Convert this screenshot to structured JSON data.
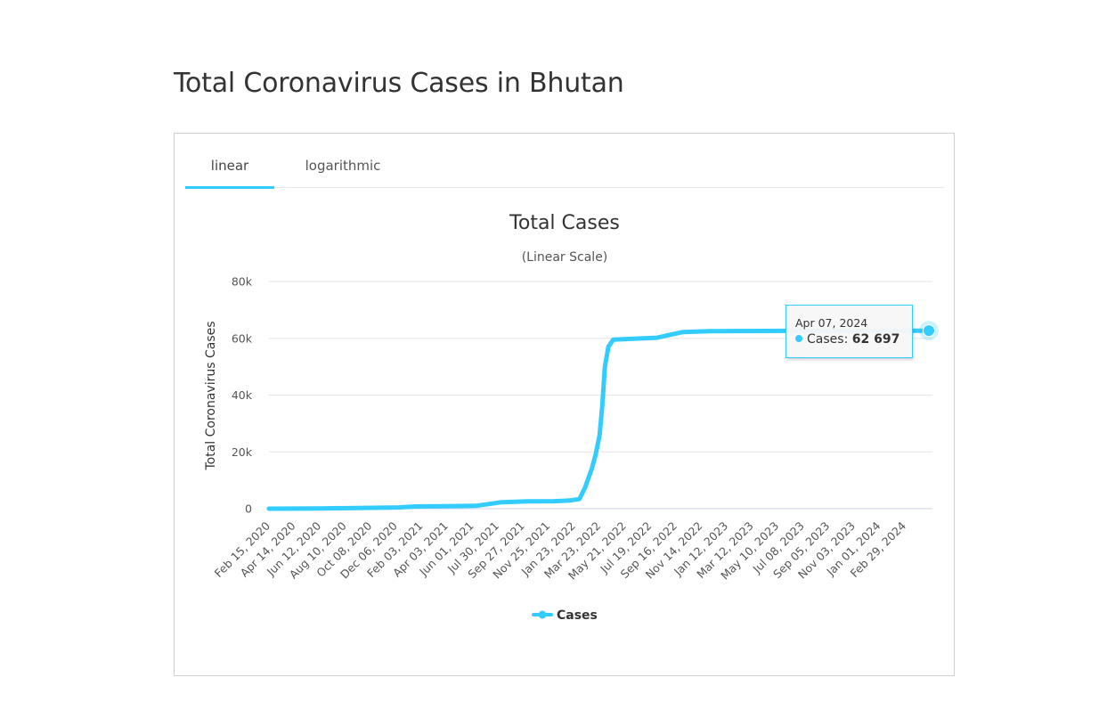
{
  "page": {
    "title": "Total Coronavirus Cases in Bhutan"
  },
  "tabs": [
    {
      "label": "linear",
      "active": true
    },
    {
      "label": "logarithmic",
      "active": false
    }
  ],
  "tooltip": {
    "date": "Apr 07, 2024",
    "series": "Cases",
    "value": "62 697"
  },
  "colors": {
    "accent": "#33ccff",
    "grid": "#e6e6e6"
  },
  "chart_data": {
    "type": "line",
    "title": "Total Cases",
    "subtitle": "(Linear Scale)",
    "ylabel": "Total Coronavirus Cases",
    "xlabel": "",
    "ylim": [
      0,
      80000
    ],
    "y_ticks": [
      {
        "value": 0,
        "label": "0"
      },
      {
        "value": 20000,
        "label": "20k"
      },
      {
        "value": 40000,
        "label": "40k"
      },
      {
        "value": 60000,
        "label": "60k"
      },
      {
        "value": 80000,
        "label": "80k"
      }
    ],
    "x_tick_labels": [
      "Feb 15, 2020",
      "Apr 14, 2020",
      "Jun 12, 2020",
      "Aug 10, 2020",
      "Oct 08, 2020",
      "Dec 06, 2020",
      "Feb 03, 2021",
      "Apr 03, 2021",
      "Jun 01, 2021",
      "Jul 30, 2021",
      "Sep 27, 2021",
      "Nov 25, 2021",
      "Jan 23, 2022",
      "Mar 23, 2022",
      "May 21, 2022",
      "Jul 19, 2022",
      "Sep 16, 2022",
      "Nov 14, 2022",
      "Jan 12, 2023",
      "Mar 12, 2023",
      "May 10, 2023",
      "Jul 08, 2023",
      "Sep 05, 2023",
      "Nov 03, 2023",
      "Jan 01, 2024",
      "Feb 29, 2024"
    ],
    "x_range": [
      "2020-02-15",
      "2024-04-07"
    ],
    "grid": true,
    "legend": "bottom-center",
    "series": [
      {
        "name": "Cases",
        "color": "#33ccff",
        "points": [
          [
            "2020-02-15",
            0
          ],
          [
            "2020-06-12",
            80
          ],
          [
            "2020-10-08",
            300
          ],
          [
            "2020-12-06",
            450
          ],
          [
            "2021-01-15",
            800
          ],
          [
            "2021-06-01",
            1000
          ],
          [
            "2021-07-30",
            2300
          ],
          [
            "2021-09-27",
            2600
          ],
          [
            "2021-11-25",
            2650
          ],
          [
            "2022-01-01",
            2900
          ],
          [
            "2022-01-23",
            3400
          ],
          [
            "2022-02-05",
            7500
          ],
          [
            "2022-02-20",
            14000
          ],
          [
            "2022-03-01",
            19000
          ],
          [
            "2022-03-10",
            26000
          ],
          [
            "2022-03-16",
            36000
          ],
          [
            "2022-03-22",
            50000
          ],
          [
            "2022-03-30",
            57000
          ],
          [
            "2022-04-10",
            59500
          ],
          [
            "2022-06-01",
            59900
          ],
          [
            "2022-07-19",
            60200
          ],
          [
            "2022-08-20",
            61300
          ],
          [
            "2022-09-16",
            62200
          ],
          [
            "2022-11-14",
            62500
          ],
          [
            "2023-05-10",
            62620
          ],
          [
            "2024-04-07",
            62697
          ]
        ]
      }
    ]
  }
}
